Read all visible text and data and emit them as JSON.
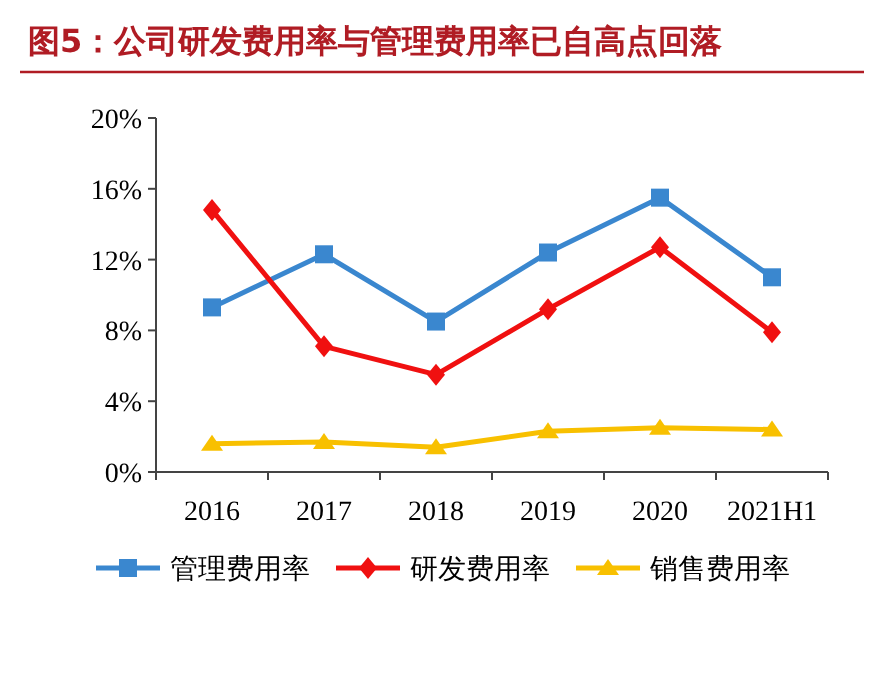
{
  "chart_data": {
    "type": "line",
    "title": "图5：公司研发费用率与管理费用率已自高点回落",
    "categories": [
      "2016",
      "2017",
      "2018",
      "2019",
      "2020",
      "2021H1"
    ],
    "series": [
      {
        "name": "管理费用率",
        "color": "#3a87cf",
        "marker": "square",
        "values": [
          9.3,
          12.3,
          8.5,
          12.4,
          15.5,
          11.0
        ]
      },
      {
        "name": "研发费用率",
        "color": "#f01010",
        "marker": "diamond",
        "values": [
          14.8,
          7.1,
          5.5,
          9.2,
          12.7,
          7.9
        ]
      },
      {
        "name": "销售费用率",
        "color": "#f8c000",
        "marker": "triangle",
        "values": [
          1.6,
          1.7,
          1.4,
          2.3,
          2.5,
          2.4
        ]
      }
    ],
    "ylim": [
      0,
      20
    ],
    "yticks": [
      {
        "value": 0,
        "label": "0%"
      },
      {
        "value": 4,
        "label": "4%"
      },
      {
        "value": 8,
        "label": "8%"
      },
      {
        "value": 12,
        "label": "12%"
      },
      {
        "value": 16,
        "label": "16%"
      },
      {
        "value": 20,
        "label": "20%"
      }
    ],
    "grid": false,
    "legend": "bottom",
    "line_style": "solid"
  }
}
